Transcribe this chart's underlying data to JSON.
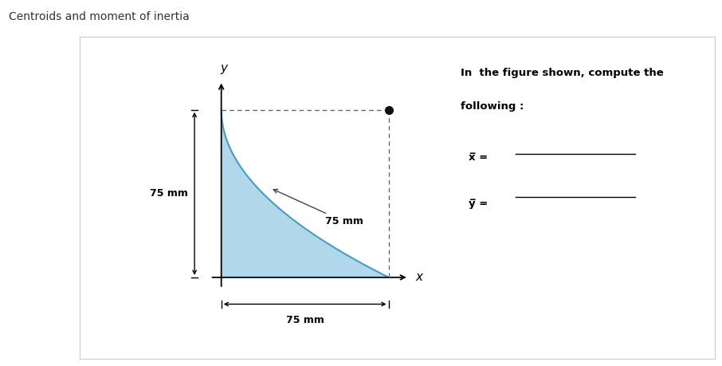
{
  "title": "Centroids and moment of inertia",
  "title_fontsize": 10,
  "fig_bg": "#ffffff",
  "panel_bg": "#ffffff",
  "curve_fill_color": "#a8d4e8",
  "curve_line_color": "#4a9cc0",
  "dashed_color": "#666666",
  "arrow_color": "#000000",
  "right_text_line1": "In  the figure shown, compute the",
  "right_text_line2": "following :",
  "xbar_label": "x̅ =",
  "ybar_label": "y̅ =",
  "label_75mm_left": "75 mm",
  "label_75mm_bottom": "75 mm",
  "label_75mm_diag": "75 mm",
  "dot_color": "#111111",
  "dot_size": 7,
  "border_color": "#cccccc"
}
